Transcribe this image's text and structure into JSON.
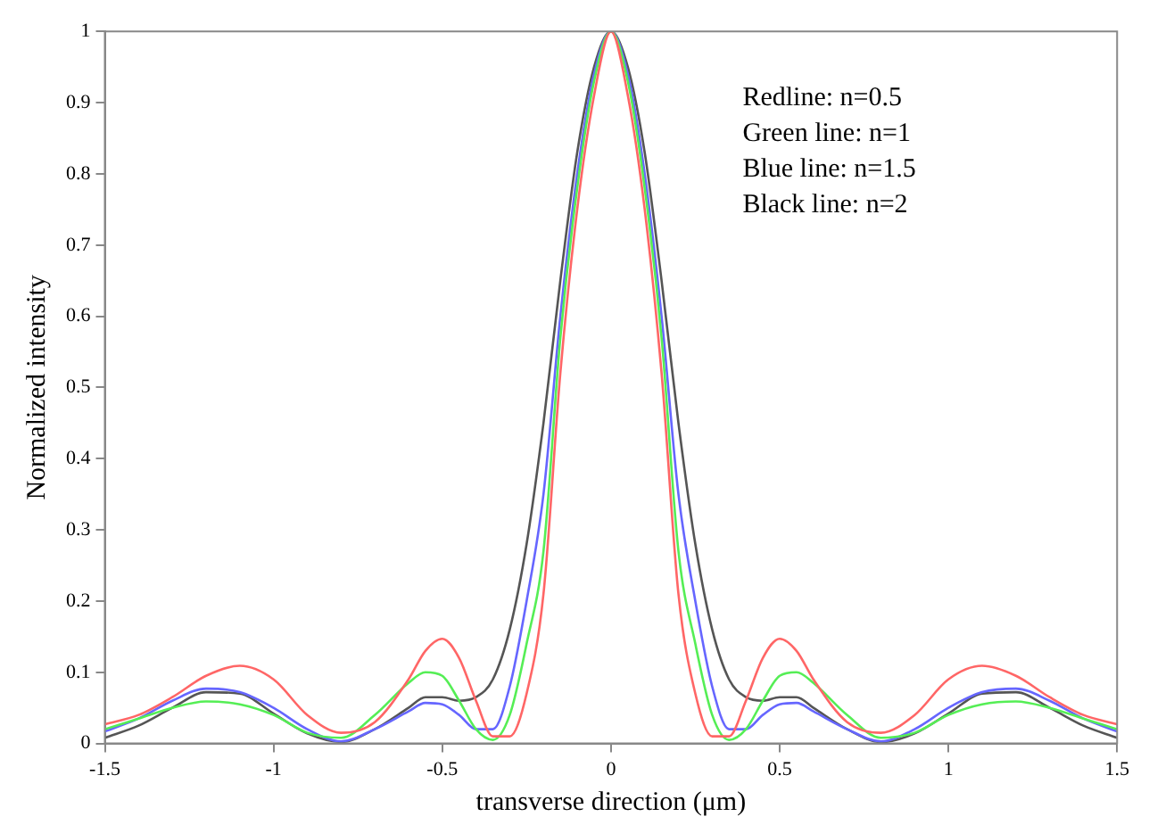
{
  "chart_data": {
    "type": "line",
    "xlabel": "transverse direction (μm)",
    "ylabel": "Normalized intensity",
    "x": [
      -1.5,
      -1.4,
      -1.3,
      -1.2,
      -1.1,
      -1,
      -0.9,
      -0.8,
      -0.7,
      -0.6,
      -0.55,
      -0.5,
      -0.45,
      -0.4,
      -0.35,
      -0.3,
      -0.25,
      -0.2,
      -0.15,
      -0.1,
      -0.05,
      0,
      0.05,
      0.1,
      0.15,
      0.2,
      0.25,
      0.3,
      0.35,
      0.4,
      0.45,
      0.5,
      0.55,
      0.6,
      0.7,
      0.8,
      0.9,
      1,
      1.1,
      1.2,
      1.3,
      1.4,
      1.5
    ],
    "series": [
      {
        "color": "#ff6666",
        "values": [
          0.027,
          0.04,
          0.065,
          0.095,
          0.109,
          0.09,
          0.04,
          0.015,
          0.03,
          0.09,
          0.13,
          0.147,
          0.12,
          0.06,
          0.01,
          0.01,
          0.07,
          0.21,
          0.52,
          0.75,
          0.91,
          1,
          0.91,
          0.75,
          0.52,
          0.21,
          0.07,
          0.01,
          0.01,
          0.06,
          0.12,
          0.147,
          0.13,
          0.09,
          0.03,
          0.015,
          0.04,
          0.09,
          0.109,
          0.095,
          0.065,
          0.04,
          0.027
        ]
      },
      {
        "color": "#55ee55",
        "values": [
          0.02,
          0.035,
          0.05,
          0.059,
          0.055,
          0.04,
          0.015,
          0.008,
          0.04,
          0.085,
          0.1,
          0.095,
          0.06,
          0.02,
          0.005,
          0.04,
          0.14,
          0.27,
          0.57,
          0.78,
          0.93,
          1,
          0.93,
          0.78,
          0.57,
          0.27,
          0.14,
          0.04,
          0.005,
          0.02,
          0.06,
          0.095,
          0.1,
          0.085,
          0.04,
          0.008,
          0.015,
          0.04,
          0.055,
          0.059,
          0.05,
          0.035,
          0.02
        ]
      },
      {
        "color": "#6666ff",
        "values": [
          0.017,
          0.035,
          0.06,
          0.077,
          0.072,
          0.05,
          0.02,
          0.003,
          0.02,
          0.045,
          0.057,
          0.055,
          0.04,
          0.02,
          0.02,
          0.08,
          0.2,
          0.35,
          0.6,
          0.8,
          0.94,
          1,
          0.94,
          0.8,
          0.6,
          0.35,
          0.2,
          0.08,
          0.02,
          0.02,
          0.04,
          0.055,
          0.057,
          0.045,
          0.02,
          0.003,
          0.02,
          0.05,
          0.072,
          0.077,
          0.06,
          0.035,
          0.017
        ]
      },
      {
        "color": "#555555",
        "values": [
          0.008,
          0.025,
          0.05,
          0.072,
          0.07,
          0.042,
          0.014,
          0.002,
          0.02,
          0.05,
          0.065,
          0.065,
          0.06,
          0.065,
          0.09,
          0.16,
          0.28,
          0.45,
          0.65,
          0.83,
          0.95,
          1,
          0.95,
          0.83,
          0.65,
          0.45,
          0.28,
          0.16,
          0.09,
          0.065,
          0.06,
          0.065,
          0.065,
          0.05,
          0.02,
          0.002,
          0.014,
          0.042,
          0.07,
          0.072,
          0.05,
          0.025,
          0.008
        ]
      }
    ],
    "xlim": [
      -1.5,
      1.5
    ],
    "xticks": [
      -1.5,
      -1,
      -0.5,
      0,
      0.5,
      1,
      1.5
    ],
    "ylim": [
      0,
      1
    ],
    "yticks": [
      0,
      0.1,
      0.2,
      0.3,
      0.4,
      0.5,
      0.6,
      0.7,
      0.8,
      0.9,
      1
    ],
    "grid": false,
    "legend": false,
    "marker": "none",
    "line_style": "solid",
    "annotations": [
      "Redline: n=0.5",
      "Green line: n=1",
      "Blue line: n=1.5",
      "Black line: n=2"
    ]
  }
}
